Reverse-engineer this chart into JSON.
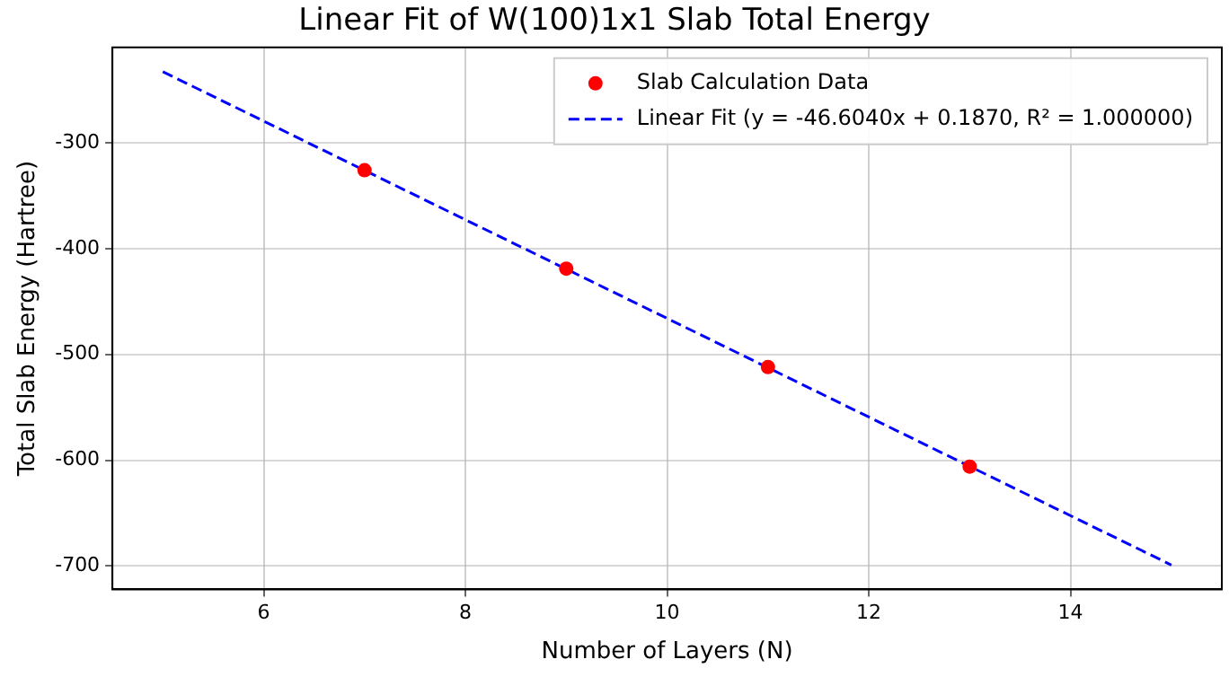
{
  "chart_data": {
    "type": "scatter",
    "title": "Linear Fit of W(100)1x1 Slab Total Energy",
    "xlabel": "Number of Layers (N)",
    "ylabel": "Total Slab Energy (Hartree)",
    "series": [
      {
        "name": "Slab Calculation Data",
        "type": "scatter",
        "color": "#ff0000",
        "marker": "circle",
        "x": [
          7,
          9,
          11,
          13
        ],
        "values": [
          -326,
          -419,
          -512,
          -606
        ]
      },
      {
        "name": "Linear Fit (y = -46.6040x + 0.1870, R² = 1.000000)",
        "type": "line",
        "color": "#0000ff",
        "marker": "none",
        "line_style": "dashed",
        "x": [
          5,
          15
        ],
        "values": [
          -233,
          -699
        ]
      }
    ],
    "xlim": [
      4.5,
      15.5
    ],
    "xticks": [
      6,
      8,
      10,
      12,
      14
    ],
    "ylim": [
      -722,
      -210
    ],
    "yticks": [
      -700,
      -600,
      -500,
      -400,
      -300
    ],
    "grid": true,
    "legend": "top right"
  }
}
